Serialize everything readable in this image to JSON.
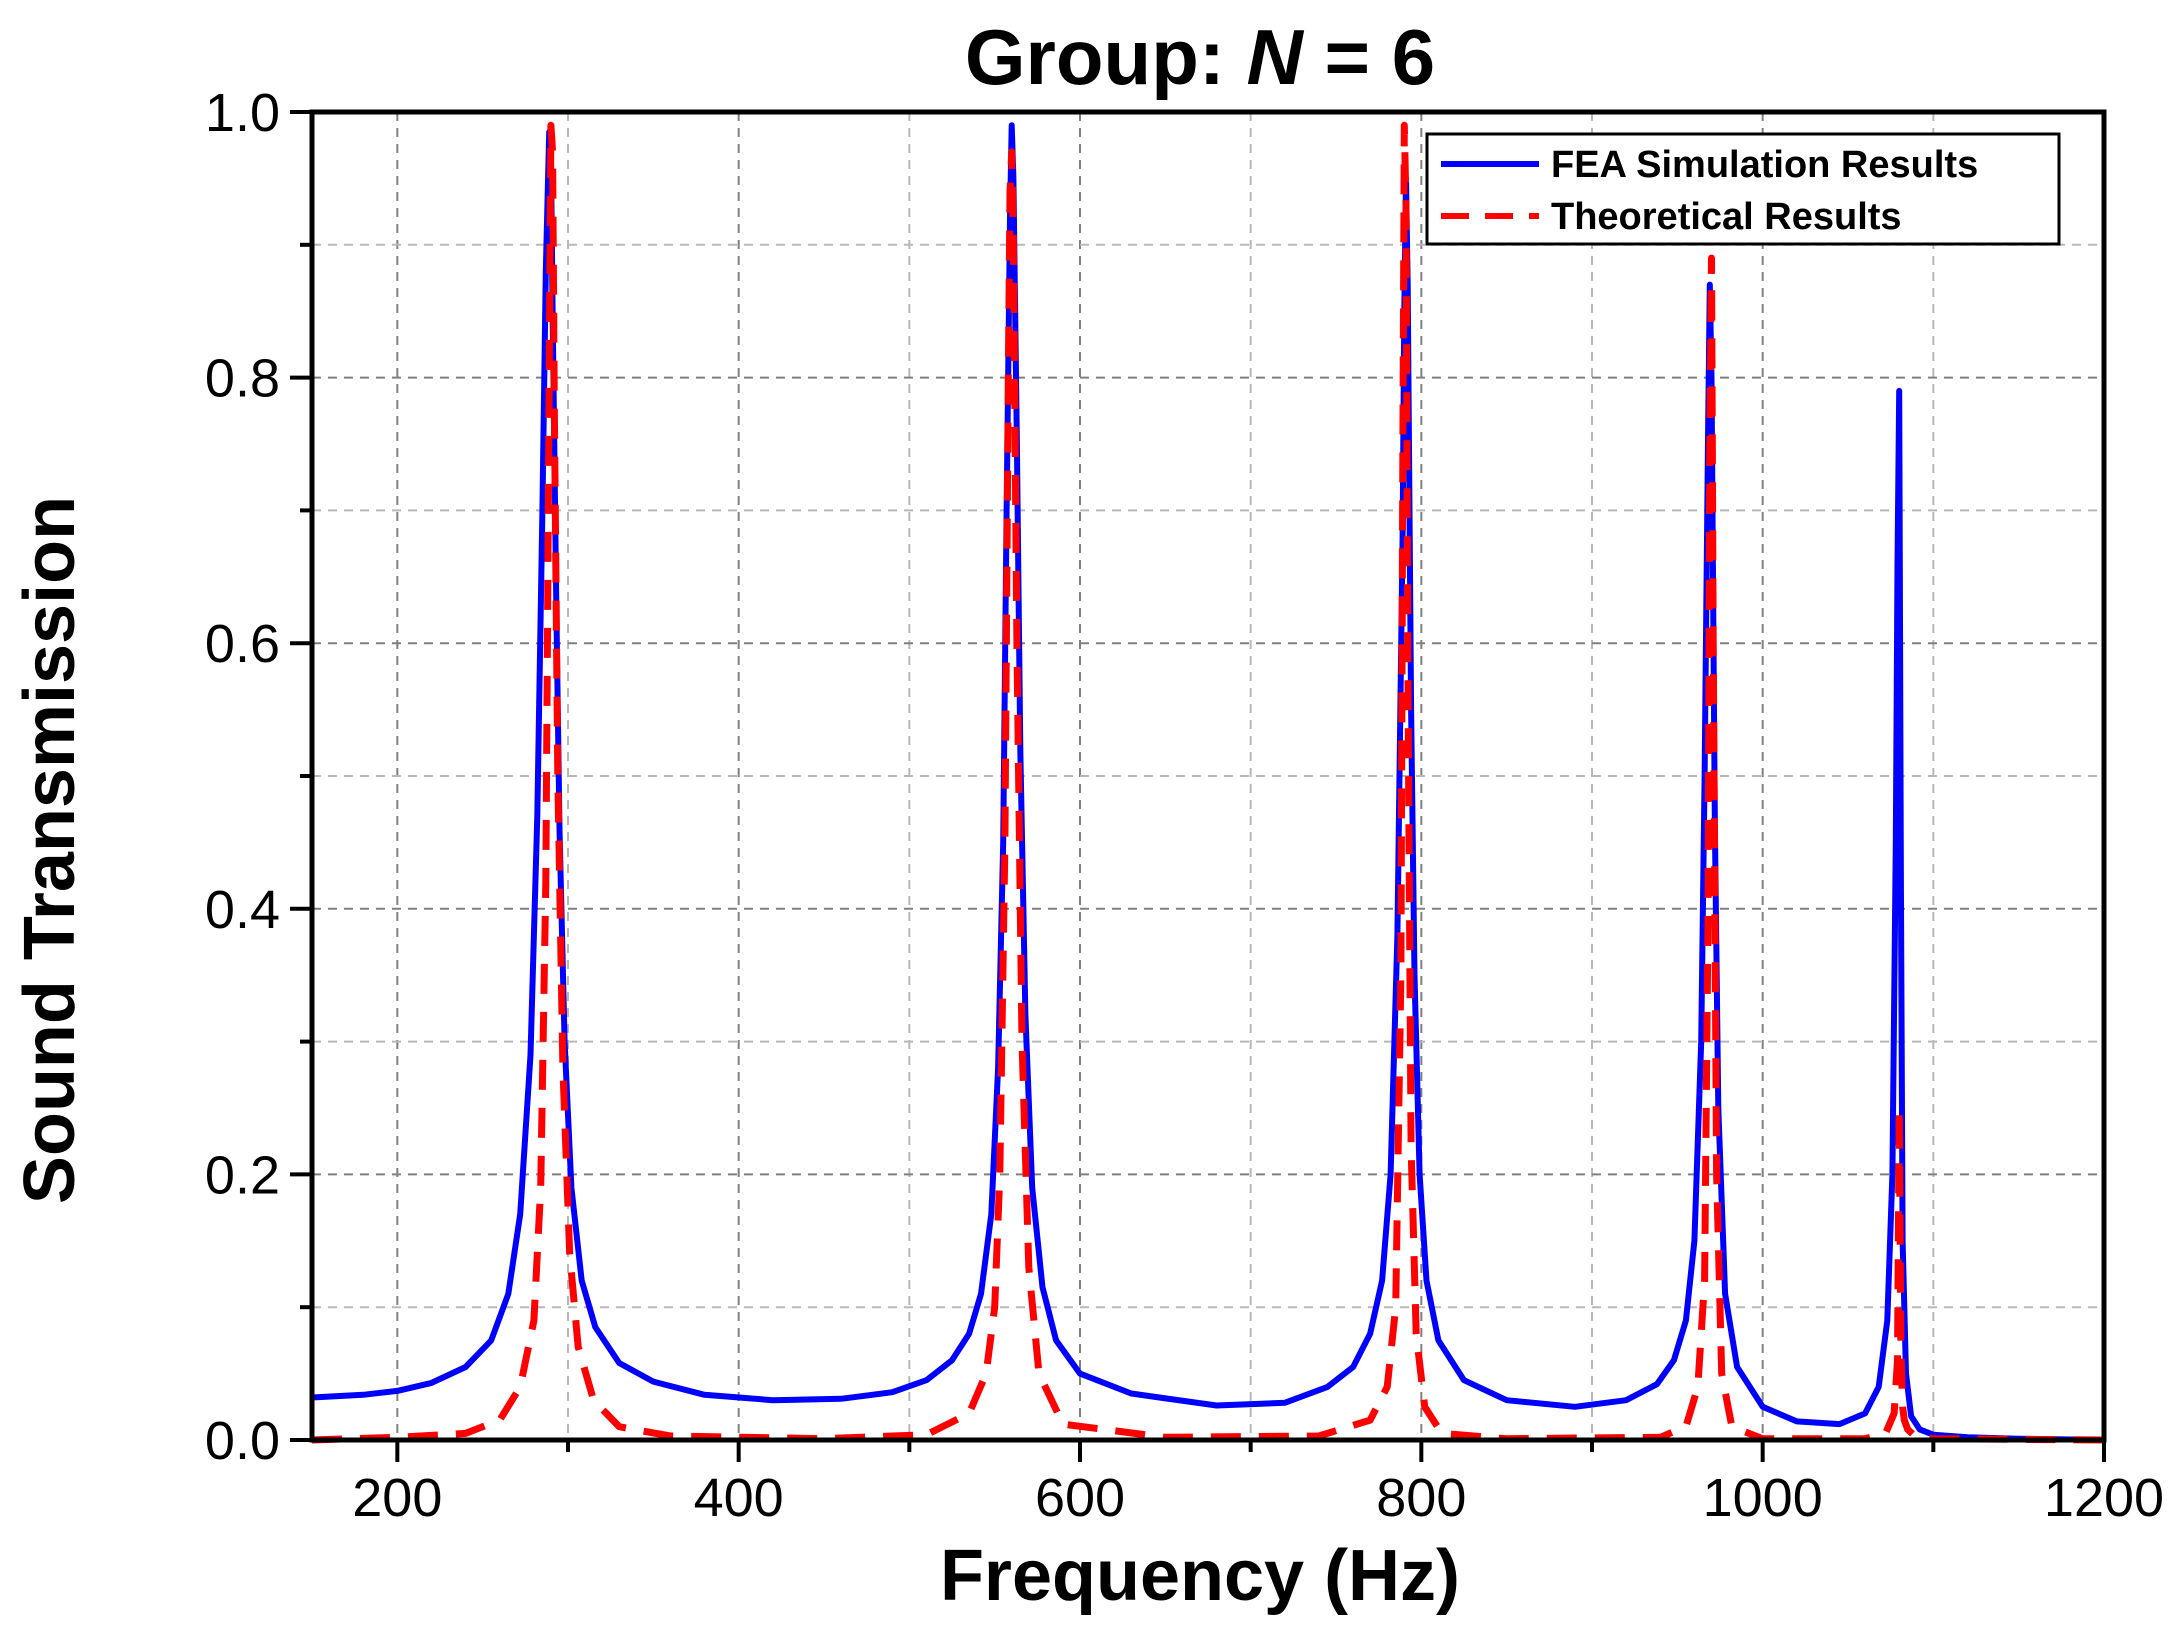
{
  "chart_data": {
    "type": "line",
    "title_prefix": "Group: ",
    "title_var": "N",
    "title_suffix": " = 6",
    "xlabel": "Frequency (Hz)",
    "ylabel": "Sound Transmission",
    "xlim": [
      150,
      1200
    ],
    "ylim": [
      0.0,
      1.0
    ],
    "xticks": [
      200,
      400,
      600,
      800,
      1000,
      1200
    ],
    "xtick_labels": [
      "200",
      "400",
      "600",
      "800",
      "1000",
      "1200"
    ],
    "xminor_ticks": [
      300,
      500,
      700,
      900,
      1100
    ],
    "yticks": [
      0.0,
      0.2,
      0.4,
      0.6,
      0.8,
      1.0
    ],
    "ytick_labels": [
      "0.0",
      "0.2",
      "0.4",
      "0.6",
      "0.8",
      "1.0"
    ],
    "yminor_ticks": [
      0.1,
      0.3,
      0.5,
      0.7,
      0.9
    ],
    "grid": true,
    "legend_position": "top-right",
    "series": [
      {
        "name": "FEA Simulation Results",
        "color": "#0000ff",
        "style": "solid",
        "x": [
          150,
          180,
          200,
          220,
          240,
          255,
          265,
          272,
          278,
          282,
          285,
          287,
          289,
          290,
          291,
          293,
          295,
          298,
          302,
          308,
          316,
          330,
          350,
          380,
          420,
          460,
          490,
          510,
          525,
          535,
          542,
          548,
          552,
          555,
          557,
          559,
          560,
          561,
          563,
          565,
          568,
          572,
          578,
          586,
          600,
          630,
          680,
          720,
          745,
          760,
          770,
          777,
          782,
          786,
          789,
          790,
          791,
          792,
          794,
          796,
          799,
          803,
          810,
          825,
          850,
          890,
          920,
          938,
          948,
          955,
          960,
          964,
          966,
          968,
          969,
          970,
          972,
          974,
          978,
          985,
          1000,
          1020,
          1045,
          1060,
          1068,
          1073,
          1076,
          1078,
          1079,
          1080,
          1081,
          1082,
          1084,
          1087,
          1092,
          1100,
          1120,
          1150,
          1200
        ],
        "y": [
          0.032,
          0.034,
          0.037,
          0.043,
          0.055,
          0.075,
          0.11,
          0.17,
          0.29,
          0.47,
          0.7,
          0.88,
          0.985,
          0.97,
          0.85,
          0.64,
          0.46,
          0.3,
          0.19,
          0.12,
          0.085,
          0.058,
          0.044,
          0.034,
          0.03,
          0.031,
          0.036,
          0.045,
          0.06,
          0.08,
          0.11,
          0.17,
          0.28,
          0.45,
          0.7,
          0.92,
          0.99,
          0.95,
          0.75,
          0.52,
          0.32,
          0.19,
          0.115,
          0.075,
          0.05,
          0.035,
          0.026,
          0.028,
          0.04,
          0.055,
          0.08,
          0.12,
          0.2,
          0.38,
          0.68,
          0.85,
          0.95,
          0.87,
          0.55,
          0.35,
          0.2,
          0.12,
          0.075,
          0.045,
          0.03,
          0.025,
          0.03,
          0.042,
          0.06,
          0.09,
          0.15,
          0.3,
          0.5,
          0.76,
          0.87,
          0.8,
          0.46,
          0.25,
          0.11,
          0.055,
          0.025,
          0.014,
          0.012,
          0.02,
          0.04,
          0.09,
          0.2,
          0.45,
          0.66,
          0.79,
          0.42,
          0.15,
          0.05,
          0.018,
          0.008,
          0.004,
          0.002,
          0.001,
          0.0
        ]
      },
      {
        "name": "Theoretical Results",
        "color": "#ff0000",
        "style": "dashed",
        "x": [
          150,
          200,
          240,
          260,
          272,
          280,
          284,
          287,
          289,
          290,
          291,
          292,
          294,
          297,
          301,
          306,
          315,
          330,
          360,
          450,
          510,
          535,
          545,
          550,
          553,
          556,
          558,
          559,
          560,
          561,
          563,
          566,
          570,
          576,
          590,
          650,
          740,
          770,
          780,
          785,
          788,
          789,
          790,
          791,
          792,
          794,
          797,
          802,
          812,
          850,
          940,
          955,
          962,
          966,
          968,
          969,
          970,
          971,
          973,
          976,
          982,
          1000,
          1060,
          1072,
          1077,
          1079,
          1080,
          1081,
          1082,
          1083,
          1085,
          1089,
          1100,
          1200
        ],
        "y": [
          0.0,
          0.002,
          0.005,
          0.015,
          0.04,
          0.09,
          0.19,
          0.42,
          0.8,
          0.99,
          0.97,
          0.78,
          0.5,
          0.28,
          0.14,
          0.07,
          0.03,
          0.01,
          0.003,
          0.001,
          0.004,
          0.02,
          0.05,
          0.1,
          0.2,
          0.45,
          0.8,
          0.94,
          0.97,
          0.9,
          0.6,
          0.3,
          0.13,
          0.05,
          0.012,
          0.002,
          0.003,
          0.015,
          0.04,
          0.1,
          0.35,
          0.7,
          0.99,
          0.93,
          0.6,
          0.22,
          0.08,
          0.025,
          0.005,
          0.001,
          0.002,
          0.01,
          0.04,
          0.12,
          0.4,
          0.75,
          0.89,
          0.6,
          0.2,
          0.05,
          0.01,
          0.001,
          0.001,
          0.005,
          0.02,
          0.06,
          0.25,
          0.07,
          0.025,
          0.015,
          0.008,
          0.003,
          0.001,
          0.0
        ]
      }
    ]
  }
}
